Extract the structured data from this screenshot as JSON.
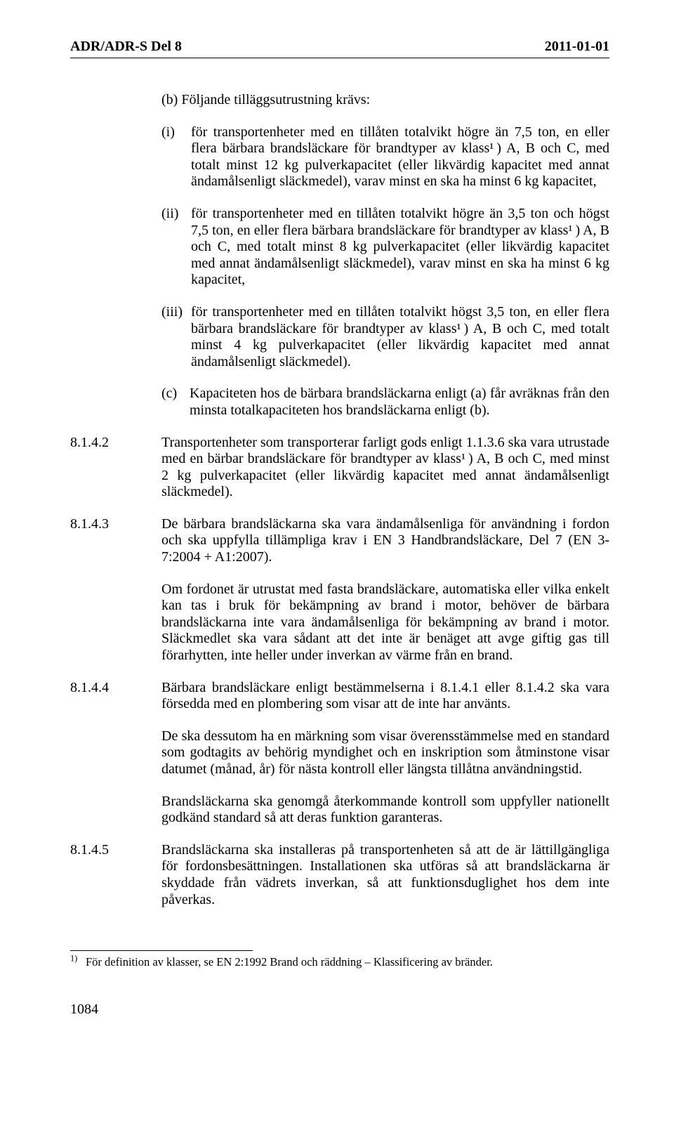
{
  "header": {
    "left": "ADR/ADR-S Del 8",
    "right": "2011-01-01"
  },
  "b": {
    "intro": "(b)  Följande tilläggsutrustning krävs:",
    "items": [
      {
        "marker": "(i)",
        "text": "för transportenheter med en tillåten totalvikt högre än 7,5 ton, en eller flera bärbara brandsläckare för brandtyper av klass¹ ) A, B och C, med totalt minst 12 kg pulverkapacitet (eller likvärdig kapacitet med annat ändamålsenligt släckmedel), varav minst en ska ha minst 6 kg kapacitet,"
      },
      {
        "marker": "(ii)",
        "text": "för transportenheter med en tillåten totalvikt högre än 3,5 ton och högst 7,5 ton, en eller flera bärbara brandsläckare för brandtyper av klass¹ ) A, B och C, med totalt minst 8 kg pulverkapacitet (eller likvärdig kapacitet med annat ändamålsenligt släckmedel), varav minst en ska ha minst 6 kg kapacitet,"
      },
      {
        "marker": "(iii)",
        "text": "för transportenheter med en tillåten totalvikt högst 3,5 ton, en eller flera bärbara brandsläckare för brandtyper av klass¹ ) A, B och C, med totalt minst 4 kg pulverkapacitet (eller likvärdig kapacitet med annat ändamålsenligt släckmedel)."
      }
    ]
  },
  "c": {
    "marker": "(c)",
    "text": "Kapaciteten hos de bärbara brandsläckarna enligt (a) får avräknas från den minsta totalkapaciteten hos brandsläckarna enligt (b)."
  },
  "clauses": [
    {
      "num": "8.1.4.2",
      "text": "Transportenheter som transporterar farligt gods enligt 1.1.3.6 ska vara utrustade med en bärbar brandsläckare för brandtyper av klass¹ ) A, B och C, med minst 2 kg pulverkapacitet (eller likvärdig kapacitet med annat ändamålsenligt släckmedel).",
      "extra": []
    },
    {
      "num": "8.1.4.3",
      "text": "De bärbara brandsläckarna ska vara ändamålsenliga för användning i fordon och ska uppfylla tillämpliga krav i EN 3 Handbrandsläckare, Del 7 (EN 3-7:2004 + A1:2007).",
      "extra": [
        "Om fordonet är utrustat med fasta brandsläckare, automatiska eller vilka enkelt kan tas i bruk för bekämpning av brand i motor, behöver de bärbara brandsläckarna inte vara ändamålsenliga för bekämpning av brand i motor. Släckmedlet ska vara sådant att det inte är benäget att avge giftig gas till förarhytten, inte heller under inverkan av värme från en brand."
      ]
    },
    {
      "num": "8.1.4.4",
      "text": "Bärbara brandsläckare enligt bestämmelserna i 8.1.4.1 eller 8.1.4.2 ska vara försedda med en plombering som visar att de inte har använts.",
      "extra": [
        "De ska dessutom ha en märkning som visar överensstämmelse med en standard som godtagits av behörig myndighet och en inskription som åtminstone visar datumet (månad, år) för nästa kontroll eller längsta tillåtna användningstid.",
        "Brandsläckarna ska genomgå återkommande kontroll som uppfyller nationellt godkänd standard så att deras funktion garanteras."
      ]
    },
    {
      "num": "8.1.4.5",
      "text": "Brandsläckarna ska installeras på transportenheten så att de är lättillgängliga för fordonsbesättningen. Installationen ska utföras så att brandsläckarna är skyddade från vädrets inverkan, så att funktionsduglighet hos dem inte påverkas.",
      "extra": []
    }
  ],
  "footnote": {
    "marker": "1)",
    "text": "För definition av klasser, se EN 2:1992 Brand och räddning – Klassificering av bränder."
  },
  "pageNumber": "1084"
}
